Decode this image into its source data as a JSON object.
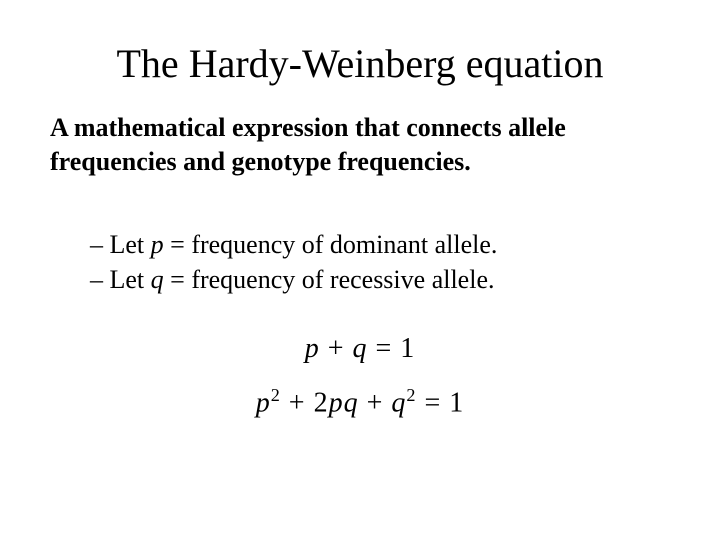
{
  "title": "The Hardy-Weinberg equation",
  "subtitle": "A mathematical expression that connects allele frequencies and genotype frequencies.",
  "definitions": {
    "p_prefix": "– Let ",
    "p_var": "p",
    "p_suffix": " = frequency of dominant allele.",
    "q_prefix": "– Let ",
    "q_var": "q",
    "q_suffix": " = frequency of recessive allele."
  },
  "equations": {
    "eq1_p": "p",
    "eq1_plus": " + ",
    "eq1_q": "q",
    "eq1_rhs": " = 1",
    "eq2_p": "p",
    "eq2_sq1": "2",
    "eq2_plus1": " + 2",
    "eq2_pq": "pq",
    "eq2_plus2": " + ",
    "eq2_q": "q",
    "eq2_sq2": "2",
    "eq2_rhs": " = 1"
  },
  "style": {
    "background_color": "#ffffff",
    "text_color": "#000000",
    "font_family": "Times New Roman",
    "title_fontsize": 40,
    "subtitle_fontsize": 26,
    "body_fontsize": 26,
    "equation_fontsize": 28
  }
}
